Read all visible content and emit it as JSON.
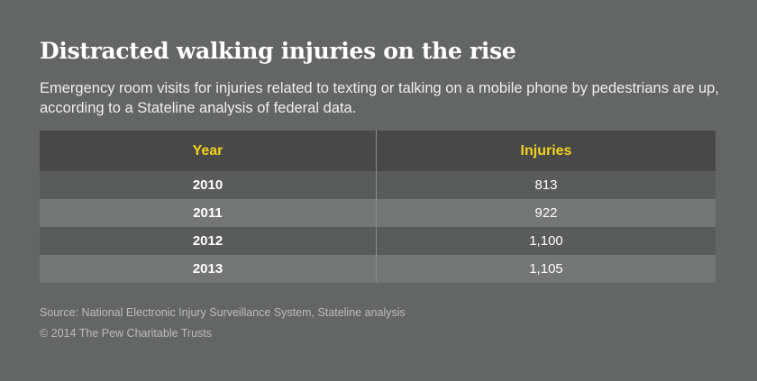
{
  "title": "Distracted walking injuries on the rise",
  "subtitle": "Emergency room visits for injuries related to texting or talking on a mobile phone by pedestrians are up, according to a Stateline analysis of federal data.",
  "source": "Source: National Electronic Injury Surveillance System, Stateline analysis",
  "copyright": "© 2014 The Pew Charitable Trusts",
  "colors": {
    "background": "#646565",
    "header_background": "#484849",
    "header_text": "#f2d21c",
    "row_dark": "#5a5b5b",
    "row_light": "#747575"
  },
  "chart_data": {
    "type": "table",
    "title": "Distracted walking injuries on the rise",
    "columns": [
      "Year",
      "Injuries"
    ],
    "rows": [
      [
        "2010",
        "813"
      ],
      [
        "2011",
        "922"
      ],
      [
        "2012",
        "1,100"
      ],
      [
        "2013",
        "1,105"
      ]
    ],
    "x": [
      2010,
      2011,
      2012,
      2013
    ],
    "values": [
      813,
      922,
      1100,
      1105
    ]
  }
}
